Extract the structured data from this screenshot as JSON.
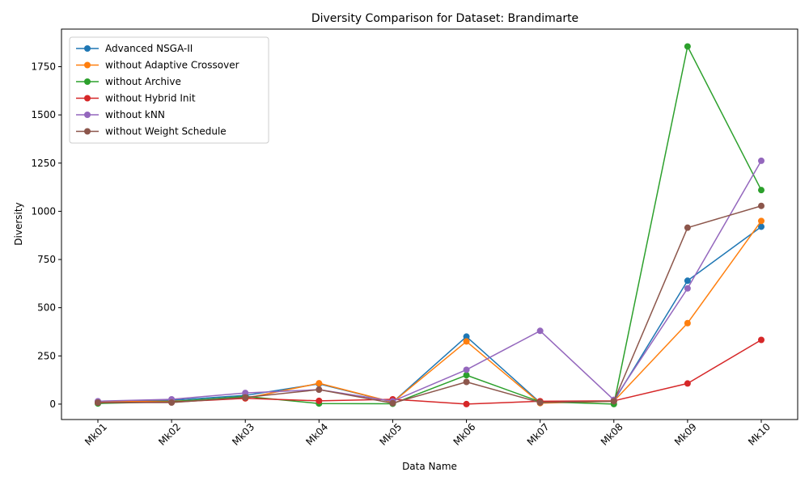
{
  "chart_data": {
    "type": "line",
    "title": "Diversity Comparison for Dataset: Brandimarte",
    "xlabel": "Data Name",
    "ylabel": "Diversity",
    "categories": [
      "Mk01",
      "Mk02",
      "Mk03",
      "Mk04",
      "Mk05",
      "Mk06",
      "Mk07",
      "Mk08",
      "Mk09",
      "Mk10"
    ],
    "ylim": [
      -80,
      1945
    ],
    "yticks": [
      0,
      250,
      500,
      750,
      1000,
      1250,
      1500,
      1750
    ],
    "grid": false,
    "legend_position": "upper-left",
    "series": [
      {
        "name": "Advanced NSGA-II",
        "color": "#1f77b4",
        "values": [
          12,
          20,
          45,
          105,
          10,
          350,
          8,
          15,
          640,
          920
        ]
      },
      {
        "name": "without Adaptive Crossover",
        "color": "#ff7f0e",
        "values": [
          12,
          15,
          30,
          108,
          10,
          325,
          5,
          15,
          420,
          950
        ]
      },
      {
        "name": "without Archive",
        "color": "#2ca02c",
        "values": [
          3,
          12,
          40,
          3,
          2,
          150,
          12,
          0,
          1855,
          1110
        ]
      },
      {
        "name": "without Hybrid Init",
        "color": "#d62728",
        "values": [
          8,
          10,
          30,
          17,
          25,
          0,
          15,
          17,
          107,
          333
        ]
      },
      {
        "name": "without kNN",
        "color": "#9467bd",
        "values": [
          15,
          25,
          58,
          75,
          15,
          178,
          380,
          22,
          600,
          1262
        ]
      },
      {
        "name": "without Weight Schedule",
        "color": "#8c564b",
        "values": [
          8,
          8,
          35,
          75,
          5,
          115,
          8,
          15,
          915,
          1028
        ]
      }
    ]
  }
}
